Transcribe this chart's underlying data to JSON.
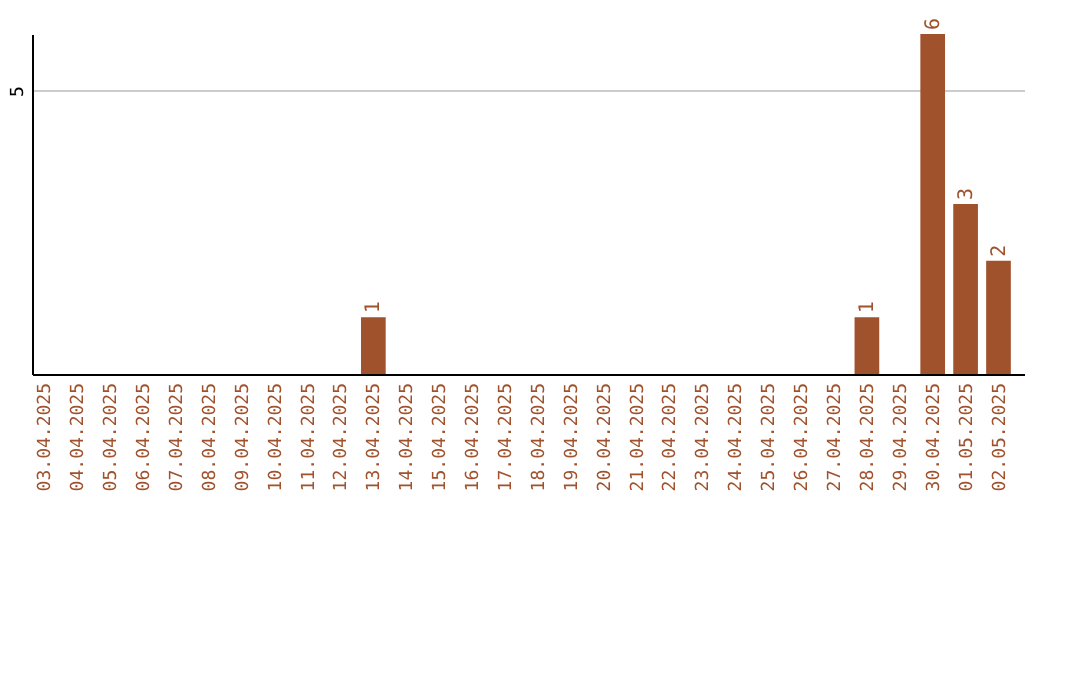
{
  "chart_data": {
    "type": "bar",
    "categories": [
      "03.04.2025",
      "04.04.2025",
      "05.04.2025",
      "06.04.2025",
      "07.04.2025",
      "08.04.2025",
      "09.04.2025",
      "10.04.2025",
      "11.04.2025",
      "12.04.2025",
      "13.04.2025",
      "14.04.2025",
      "15.04.2025",
      "16.04.2025",
      "17.04.2025",
      "18.04.2025",
      "19.04.2025",
      "20.04.2025",
      "21.04.2025",
      "22.04.2025",
      "23.04.2025",
      "24.04.2025",
      "25.04.2025",
      "26.04.2025",
      "27.04.2025",
      "28.04.2025",
      "29.04.2025",
      "30.04.2025",
      "01.05.2025",
      "02.05.2025"
    ],
    "values": [
      0,
      0,
      0,
      0,
      0,
      0,
      0,
      0,
      0,
      0,
      1,
      0,
      0,
      0,
      0,
      0,
      0,
      0,
      0,
      0,
      0,
      0,
      0,
      0,
      0,
      1,
      0,
      6,
      3,
      2
    ],
    "value_labels": [
      null,
      null,
      null,
      null,
      null,
      null,
      null,
      null,
      null,
      null,
      "1",
      null,
      null,
      null,
      null,
      null,
      null,
      null,
      null,
      null,
      null,
      null,
      null,
      null,
      null,
      "1",
      null,
      "6",
      "3",
      "2"
    ],
    "color": "#a0522d",
    "ylim": [
      0,
      6
    ],
    "yticks": [
      5
    ],
    "grid": "y"
  }
}
